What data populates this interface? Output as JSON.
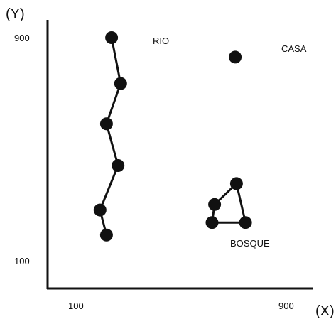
{
  "axes": {
    "y_title": "(Y)",
    "x_title": "(X)",
    "y_ticks": [
      "900",
      "100"
    ],
    "x_ticks": [
      "100",
      "900"
    ]
  },
  "features": {
    "rio": {
      "label": "RIO",
      "points": [
        [
          230,
          900
        ],
        [
          265,
          735
        ],
        [
          210,
          590
        ],
        [
          255,
          440
        ],
        [
          185,
          280
        ],
        [
          210,
          190
        ]
      ]
    },
    "casa": {
      "label": "CASA",
      "point": [
        710,
        830
      ]
    },
    "bosque": {
      "label": "BOSQUE",
      "points": [
        [
          620,
          235
        ],
        [
          630,
          300
        ],
        [
          715,
          375
        ],
        [
          750,
          235
        ]
      ]
    }
  }
}
